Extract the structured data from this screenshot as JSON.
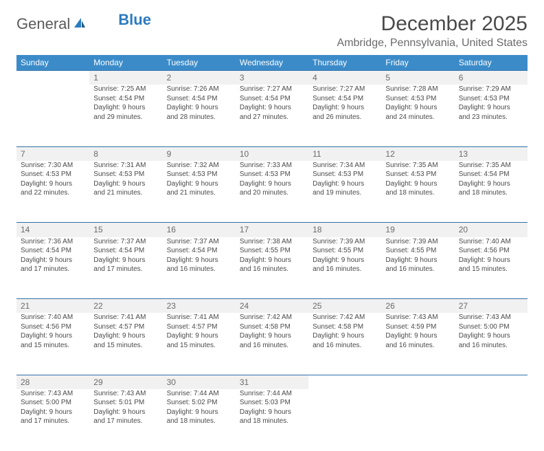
{
  "brand": {
    "part1": "General",
    "part2": "Blue"
  },
  "title": "December 2025",
  "location": "Ambridge, Pennsylvania, United States",
  "colors": {
    "header_bg": "#3b8bc9",
    "row_divider": "#2d6fa8",
    "daynum_bg": "#f1f1f1",
    "text": "#4a4a4a",
    "brand_gray": "#5a5a5a",
    "brand_blue": "#2b7bbf"
  },
  "weekdays": [
    "Sunday",
    "Monday",
    "Tuesday",
    "Wednesday",
    "Thursday",
    "Friday",
    "Saturday"
  ],
  "start_offset": 1,
  "days": [
    {
      "n": 1,
      "sr": "7:25 AM",
      "ss": "4:54 PM",
      "dl": "9 hours and 29 minutes."
    },
    {
      "n": 2,
      "sr": "7:26 AM",
      "ss": "4:54 PM",
      "dl": "9 hours and 28 minutes."
    },
    {
      "n": 3,
      "sr": "7:27 AM",
      "ss": "4:54 PM",
      "dl": "9 hours and 27 minutes."
    },
    {
      "n": 4,
      "sr": "7:27 AM",
      "ss": "4:54 PM",
      "dl": "9 hours and 26 minutes."
    },
    {
      "n": 5,
      "sr": "7:28 AM",
      "ss": "4:53 PM",
      "dl": "9 hours and 24 minutes."
    },
    {
      "n": 6,
      "sr": "7:29 AM",
      "ss": "4:53 PM",
      "dl": "9 hours and 23 minutes."
    },
    {
      "n": 7,
      "sr": "7:30 AM",
      "ss": "4:53 PM",
      "dl": "9 hours and 22 minutes."
    },
    {
      "n": 8,
      "sr": "7:31 AM",
      "ss": "4:53 PM",
      "dl": "9 hours and 21 minutes."
    },
    {
      "n": 9,
      "sr": "7:32 AM",
      "ss": "4:53 PM",
      "dl": "9 hours and 21 minutes."
    },
    {
      "n": 10,
      "sr": "7:33 AM",
      "ss": "4:53 PM",
      "dl": "9 hours and 20 minutes."
    },
    {
      "n": 11,
      "sr": "7:34 AM",
      "ss": "4:53 PM",
      "dl": "9 hours and 19 minutes."
    },
    {
      "n": 12,
      "sr": "7:35 AM",
      "ss": "4:53 PM",
      "dl": "9 hours and 18 minutes."
    },
    {
      "n": 13,
      "sr": "7:35 AM",
      "ss": "4:54 PM",
      "dl": "9 hours and 18 minutes."
    },
    {
      "n": 14,
      "sr": "7:36 AM",
      "ss": "4:54 PM",
      "dl": "9 hours and 17 minutes."
    },
    {
      "n": 15,
      "sr": "7:37 AM",
      "ss": "4:54 PM",
      "dl": "9 hours and 17 minutes."
    },
    {
      "n": 16,
      "sr": "7:37 AM",
      "ss": "4:54 PM",
      "dl": "9 hours and 16 minutes."
    },
    {
      "n": 17,
      "sr": "7:38 AM",
      "ss": "4:55 PM",
      "dl": "9 hours and 16 minutes."
    },
    {
      "n": 18,
      "sr": "7:39 AM",
      "ss": "4:55 PM",
      "dl": "9 hours and 16 minutes."
    },
    {
      "n": 19,
      "sr": "7:39 AM",
      "ss": "4:55 PM",
      "dl": "9 hours and 16 minutes."
    },
    {
      "n": 20,
      "sr": "7:40 AM",
      "ss": "4:56 PM",
      "dl": "9 hours and 15 minutes."
    },
    {
      "n": 21,
      "sr": "7:40 AM",
      "ss": "4:56 PM",
      "dl": "9 hours and 15 minutes."
    },
    {
      "n": 22,
      "sr": "7:41 AM",
      "ss": "4:57 PM",
      "dl": "9 hours and 15 minutes."
    },
    {
      "n": 23,
      "sr": "7:41 AM",
      "ss": "4:57 PM",
      "dl": "9 hours and 15 minutes."
    },
    {
      "n": 24,
      "sr": "7:42 AM",
      "ss": "4:58 PM",
      "dl": "9 hours and 16 minutes."
    },
    {
      "n": 25,
      "sr": "7:42 AM",
      "ss": "4:58 PM",
      "dl": "9 hours and 16 minutes."
    },
    {
      "n": 26,
      "sr": "7:43 AM",
      "ss": "4:59 PM",
      "dl": "9 hours and 16 minutes."
    },
    {
      "n": 27,
      "sr": "7:43 AM",
      "ss": "5:00 PM",
      "dl": "9 hours and 16 minutes."
    },
    {
      "n": 28,
      "sr": "7:43 AM",
      "ss": "5:00 PM",
      "dl": "9 hours and 17 minutes."
    },
    {
      "n": 29,
      "sr": "7:43 AM",
      "ss": "5:01 PM",
      "dl": "9 hours and 17 minutes."
    },
    {
      "n": 30,
      "sr": "7:44 AM",
      "ss": "5:02 PM",
      "dl": "9 hours and 18 minutes."
    },
    {
      "n": 31,
      "sr": "7:44 AM",
      "ss": "5:03 PM",
      "dl": "9 hours and 18 minutes."
    }
  ],
  "labels": {
    "sunrise": "Sunrise:",
    "sunset": "Sunset:",
    "daylight": "Daylight:"
  }
}
